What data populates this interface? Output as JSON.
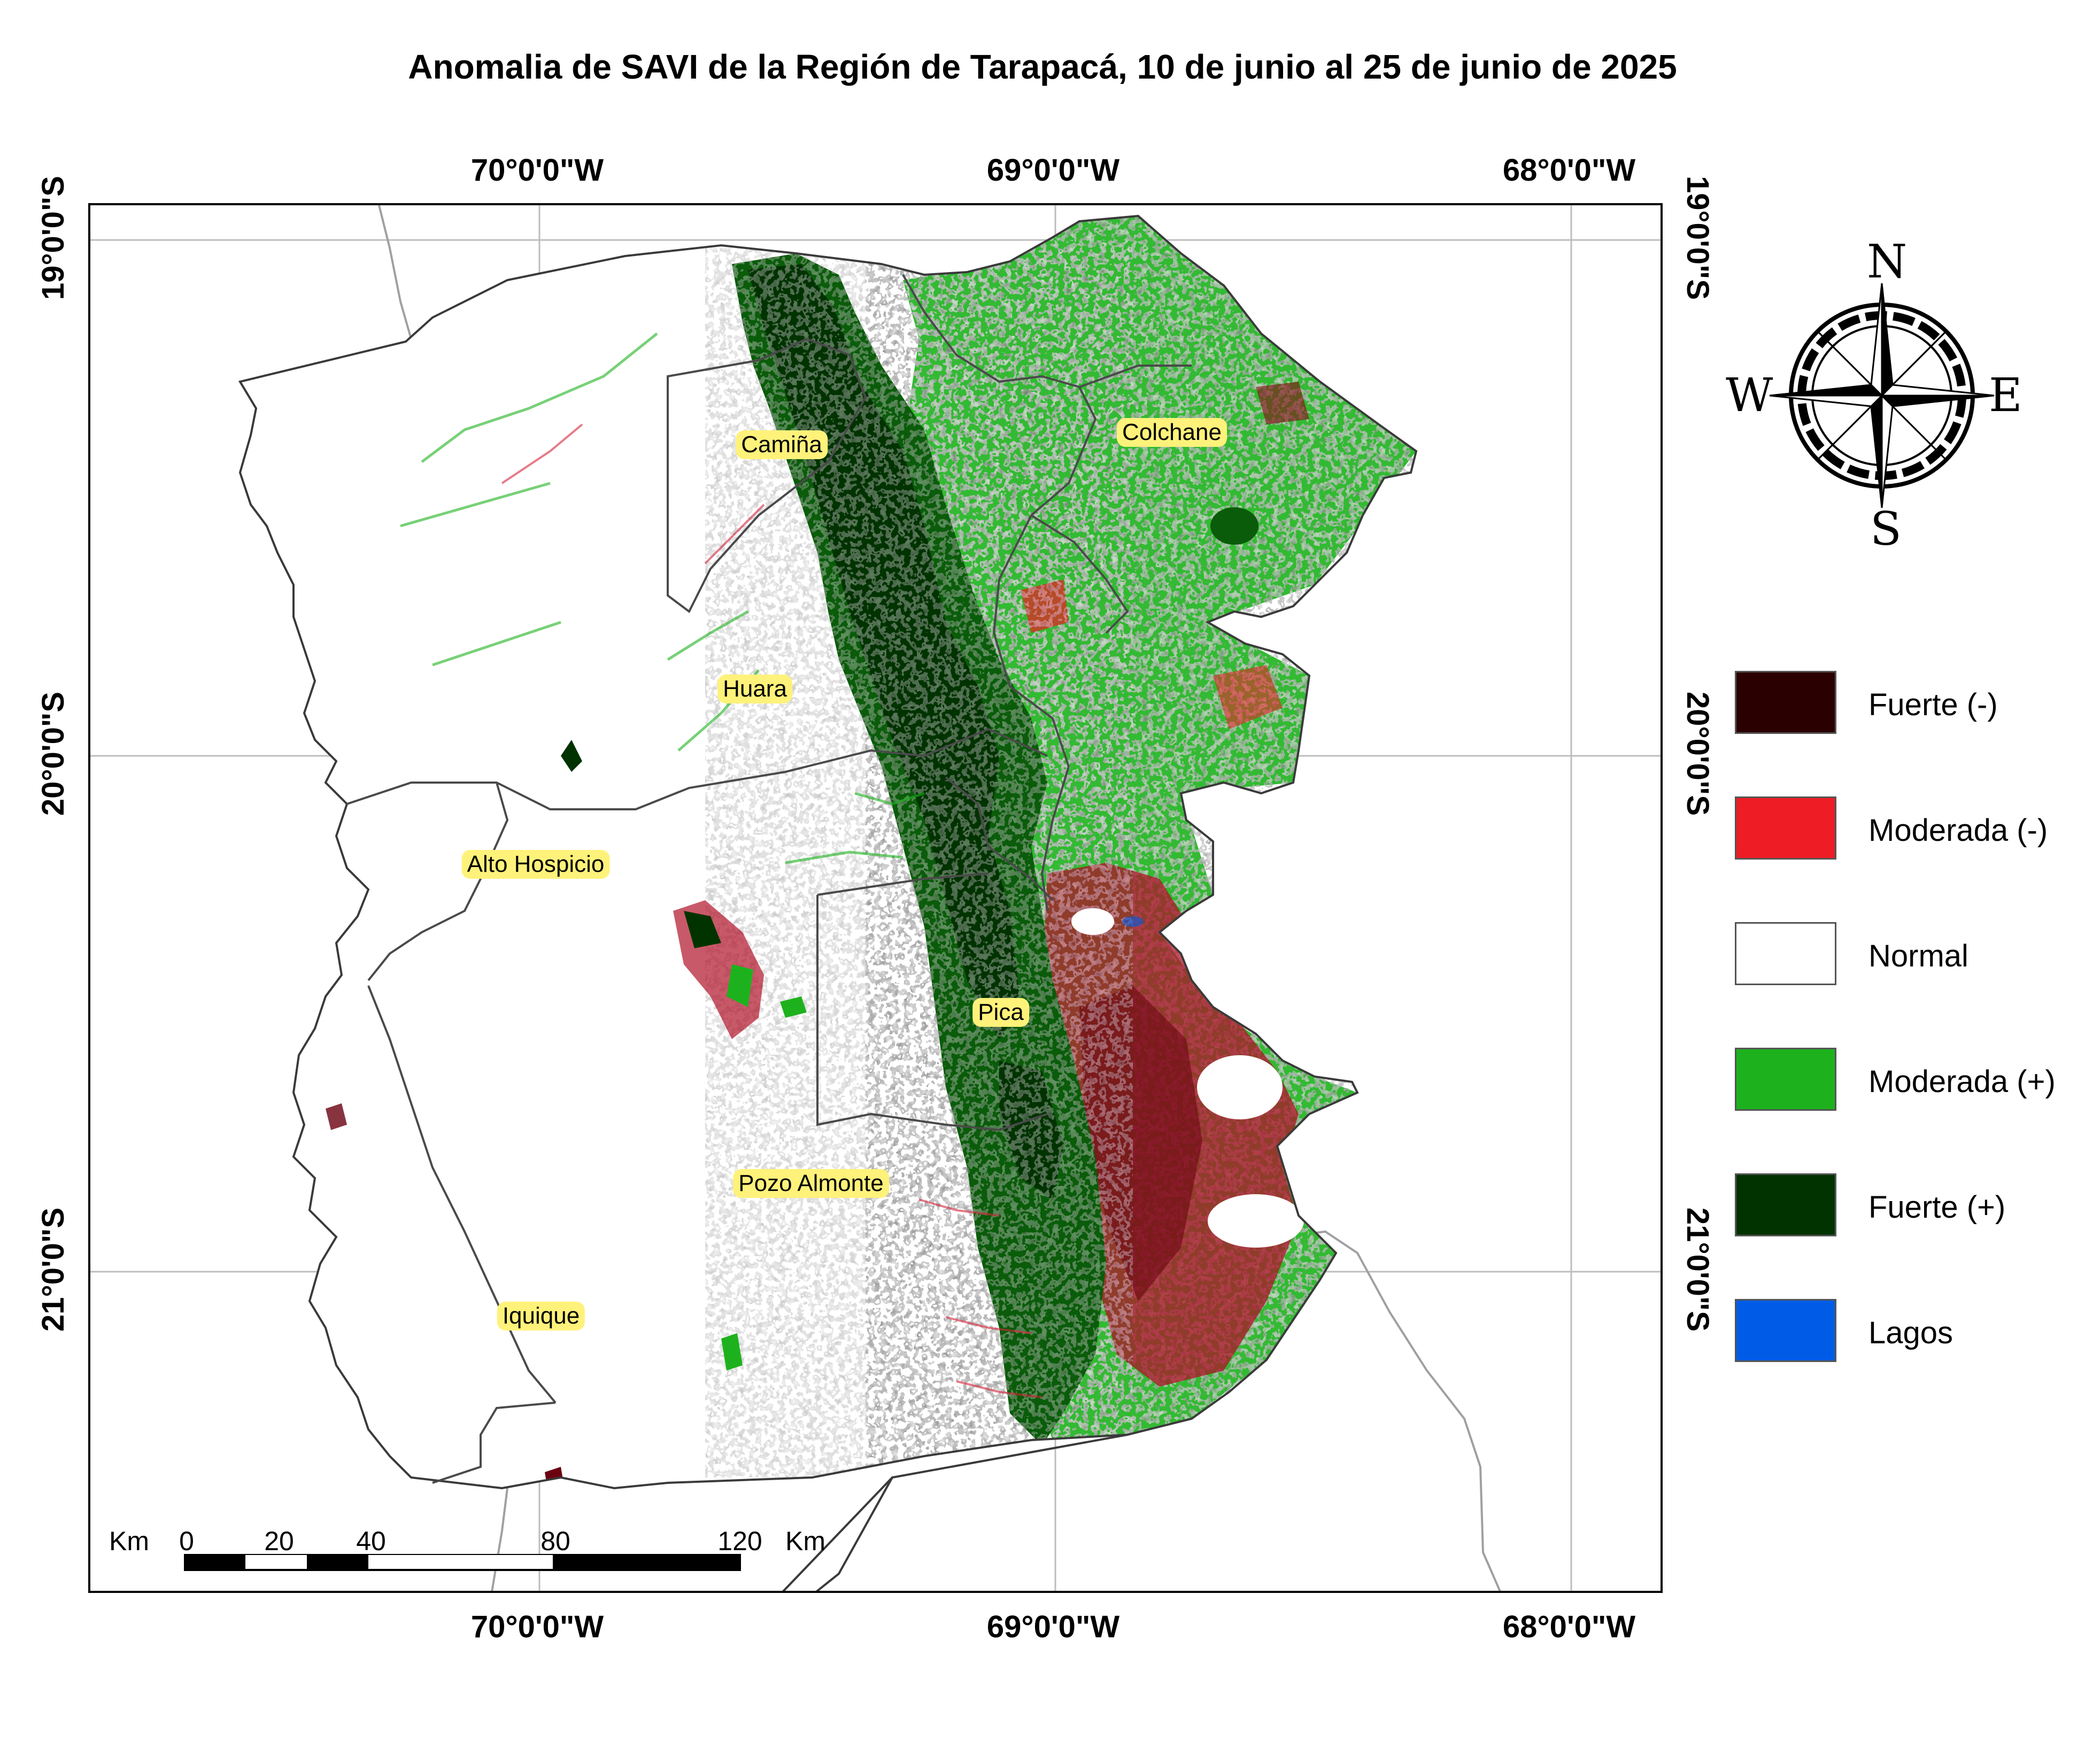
{
  "title": "Anomalia de SAVI de la Región de Tarapacá, 10 de junio al 25 de junio de 2025",
  "axes": {
    "longitude_labels": [
      "70°0'0\"W",
      "69°0'0\"W",
      "68°0'0\"W"
    ],
    "latitude_labels": [
      "19°0'0\"S",
      "20°0'0\"S",
      "21°0'0\"S"
    ]
  },
  "places": [
    {
      "name": "Camiña"
    },
    {
      "name": "Colchane"
    },
    {
      "name": "Huara"
    },
    {
      "name": "Alto Hospicio"
    },
    {
      "name": "Pica"
    },
    {
      "name": "Pozo Almonte"
    },
    {
      "name": "Iquique"
    }
  ],
  "scale_bar": {
    "unit_left": "Km",
    "unit_right": "Km",
    "ticks": [
      "0",
      "20",
      "40",
      "80",
      "120"
    ]
  },
  "north_arrow": {
    "n": "N",
    "s": "S",
    "e": "E",
    "w": "W"
  },
  "legend": [
    {
      "label": "Fuerte (-)",
      "color": "#2b0000"
    },
    {
      "label": "Moderada (-)",
      "color": "#ee1c24"
    },
    {
      "label": "Normal",
      "color": "#ffffff"
    },
    {
      "label": "Moderada (+)",
      "color": "#1db21d"
    },
    {
      "label": "Fuerte (+)",
      "color": "#003300"
    },
    {
      "label": "Lagos",
      "color": "#005ce6"
    }
  ]
}
